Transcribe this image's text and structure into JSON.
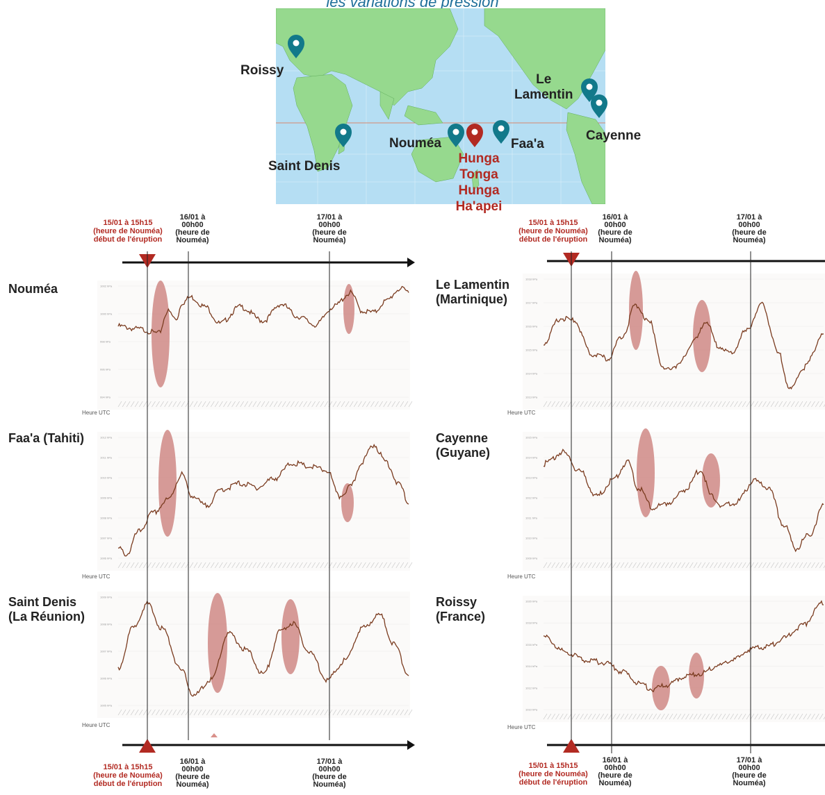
{
  "header": {
    "title": "les variations de pression"
  },
  "map": {
    "labels": {
      "roissy": "Roissy",
      "saint_denis": "Saint Denis",
      "noumea": "Nouméa",
      "faaa": "Faa'a",
      "le_lamentin": "Le\nLamentin",
      "cayenne": "Cayenne",
      "volcano": "Hunga\nTonga\nHunga\nHa'apei"
    },
    "colors": {
      "ocean": "#b5def3",
      "land": "#96d98e",
      "marker": "#12798a",
      "volcano_marker": "#b22a22"
    }
  },
  "timeline": {
    "eruption": "15/01 à 15h15\n(heure de Nouméa)\ndébut de l'éruption",
    "day16": "16/01 à\n00h00\n(heure de\nNouméa)",
    "day17": "17/01 à\n00h00\n(heure de\nNouméa)"
  },
  "axis_label": "Heure UTC",
  "colors": {
    "line": "#7a3b1f",
    "highlight": "#c97a75",
    "eruption_marker": "#b22a22"
  },
  "chart_data": [
    {
      "type": "line",
      "station": "Nouméa",
      "y_ticks": [
        "1002 hPa",
        "1000 hPa",
        "998 hPa",
        "996 hPa",
        "994 hPa"
      ],
      "ylim": [
        994,
        1002
      ],
      "x": [
        0,
        0.07,
        0.14,
        0.17,
        0.2,
        0.22,
        0.25,
        0.3,
        0.35,
        0.42,
        0.5,
        0.56,
        0.62,
        0.68,
        0.74,
        0.8,
        0.84,
        0.88,
        0.92,
        0.97,
        1.0
      ],
      "values": [
        999.2,
        999.0,
        998.7,
        1000.3,
        999.7,
        1000.9,
        1001.3,
        1000.6,
        999.4,
        1000.6,
        999.6,
        1000.8,
        999.9,
        999.3,
        1000.6,
        1001.6,
        1000.3,
        1000.2,
        1001.0,
        1001.9,
        1001.7
      ]
    },
    {
      "type": "line",
      "station": "Faa'a (Tahiti)",
      "y_ticks": [
        "1012 hPa",
        "1011 hPa",
        "1010 hPa",
        "1009 hPa",
        "1008 hPa",
        "1007 hPa",
        "1006 hPa"
      ],
      "ylim": [
        1006,
        1012.5
      ],
      "x": [
        0,
        0.03,
        0.07,
        0.12,
        0.17,
        0.22,
        0.25,
        0.3,
        0.36,
        0.42,
        0.48,
        0.54,
        0.6,
        0.66,
        0.72,
        0.76,
        0.8,
        0.84,
        0.88,
        0.92,
        0.97,
        1.0
      ],
      "values": [
        1006.6,
        1006.3,
        1007.5,
        1008.5,
        1009.2,
        1010.6,
        1009.5,
        1008.9,
        1009.8,
        1010.1,
        1009.9,
        1010.4,
        1011.2,
        1011.0,
        1010.8,
        1009.4,
        1009.9,
        1011.3,
        1012.2,
        1011.3,
        1010.0,
        1009.0
      ]
    },
    {
      "type": "line",
      "station": "Saint Denis (La Réunion)",
      "y_ticks": [
        "1009 hPa",
        "1008 hPa",
        "1007 hPa",
        "1006 hPa",
        "1005 hPa"
      ],
      "ylim": [
        1005,
        1009
      ],
      "x": [
        0,
        0.05,
        0.1,
        0.15,
        0.22,
        0.26,
        0.32,
        0.38,
        0.44,
        0.5,
        0.56,
        0.6,
        0.66,
        0.72,
        0.78,
        0.84,
        0.9,
        0.95,
        1.0
      ],
      "values": [
        1006.4,
        1007.9,
        1008.8,
        1007.9,
        1006.3,
        1005.4,
        1006.0,
        1007.7,
        1007.1,
        1006.2,
        1007.8,
        1008.1,
        1007.0,
        1006.0,
        1006.7,
        1007.9,
        1008.4,
        1007.3,
        1006.2
      ]
    },
    {
      "type": "line",
      "station": "Le Lamentin (Martinique)",
      "y_ticks": [
        "1018 hPa",
        "1017 hPa",
        "1016 hPa",
        "1015 hPa",
        "1014 hPa",
        "1013 hPa"
      ],
      "ylim": [
        1013,
        1018.3
      ],
      "x": [
        0,
        0.06,
        0.11,
        0.17,
        0.23,
        0.28,
        0.33,
        0.38,
        0.43,
        0.48,
        0.54,
        0.58,
        0.62,
        0.67,
        0.72,
        0.78,
        0.84,
        0.88,
        0.93,
        1.0
      ],
      "values": [
        1015.5,
        1016.6,
        1016.5,
        1015.0,
        1014.8,
        1015.8,
        1017.2,
        1016.4,
        1014.3,
        1014.5,
        1015.6,
        1016.5,
        1015.4,
        1015.0,
        1016.0,
        1017.2,
        1015.0,
        1013.4,
        1014.4,
        1015.9
      ]
    },
    {
      "type": "line",
      "station": "Cayenne (Guyane)",
      "y_ticks": [
        "1015 hPa",
        "1014 hPa",
        "1013 hPa",
        "1012 hPa",
        "1011 hPa",
        "1010 hPa",
        "1009 hPa"
      ],
      "ylim": [
        1009,
        1015.3
      ],
      "x": [
        0,
        0.07,
        0.13,
        0.19,
        0.25,
        0.3,
        0.34,
        0.39,
        0.45,
        0.51,
        0.56,
        0.6,
        0.64,
        0.69,
        0.75,
        0.8,
        0.86,
        0.9,
        0.95,
        1.0
      ],
      "values": [
        1014.0,
        1014.6,
        1013.6,
        1012.3,
        1013.2,
        1014.1,
        1012.7,
        1011.7,
        1012.0,
        1012.7,
        1013.7,
        1012.3,
        1011.8,
        1012.0,
        1013.1,
        1012.8,
        1010.8,
        1009.6,
        1010.3,
        1011.8
      ]
    },
    {
      "type": "line",
      "station": "Roissy (France)",
      "y_ticks": [
        "1020 hPa",
        "1018 hPa",
        "1016 hPa",
        "1014 hPa",
        "1012 hPa",
        "1010 hPa"
      ],
      "ylim": [
        1010,
        1021
      ],
      "x": [
        0,
        0.08,
        0.15,
        0.22,
        0.28,
        0.34,
        0.39,
        0.44,
        0.5,
        0.56,
        0.62,
        0.68,
        0.74,
        0.8,
        0.86,
        0.92,
        1.0
      ],
      "values": [
        1017.5,
        1016.0,
        1015.2,
        1014.9,
        1014.0,
        1012.8,
        1012.2,
        1012.6,
        1013.5,
        1013.8,
        1014.6,
        1015.2,
        1016.3,
        1016.5,
        1017.4,
        1018.6,
        1021.0
      ]
    }
  ]
}
